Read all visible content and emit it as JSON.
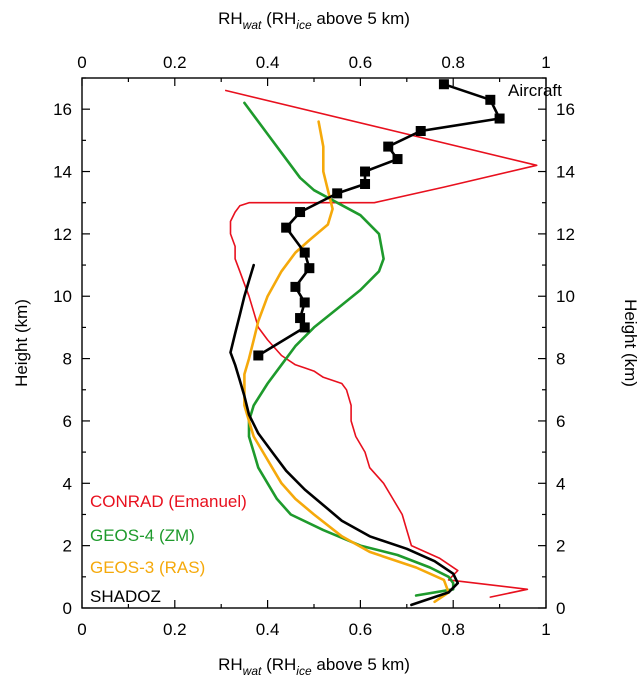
{
  "chart_data": {
    "type": "line",
    "xlim": [
      0,
      1
    ],
    "ylim": [
      0,
      17
    ],
    "x_ticks": [
      "0",
      "0.2",
      "0.4",
      "0.6",
      "0.8",
      "1"
    ],
    "y_ticks": [
      "0",
      "2",
      "4",
      "6",
      "8",
      "10",
      "12",
      "14",
      "16"
    ],
    "xlabel": {
      "main": "RH",
      "sub1": "wat",
      "mid": " (RH",
      "sub2": "ice",
      "end": " above 5 km)"
    },
    "ylabel": "Height (km)",
    "grid": false,
    "legend_position": "bottom-left",
    "annotation": "Aircraft",
    "series": [
      {
        "name": "CONRAD (Emanuel)",
        "color": "#e8101e",
        "x": [
          0.88,
          0.96,
          0.79,
          0.81,
          0.77,
          0.71,
          0.7,
          0.69,
          0.67,
          0.65,
          0.62,
          0.61,
          0.59,
          0.58,
          0.58,
          0.57,
          0.56,
          0.54,
          0.52,
          0.51,
          0.5,
          0.48,
          0.46,
          0.43,
          0.4,
          0.38,
          0.37,
          0.36,
          0.35,
          0.34,
          0.33,
          0.33,
          0.32,
          0.32,
          0.33,
          0.34,
          0.36,
          0.4,
          0.46,
          0.53,
          0.63,
          0.78,
          0.98,
          0.31
        ],
        "y": [
          0.35,
          0.6,
          0.9,
          1.2,
          1.6,
          2.0,
          2.5,
          3.0,
          3.5,
          4.0,
          4.5,
          5.0,
          5.5,
          6.0,
          6.5,
          7.0,
          7.2,
          7.3,
          7.4,
          7.5,
          7.6,
          7.7,
          7.8,
          8.1,
          8.6,
          9.0,
          9.5,
          10.0,
          10.4,
          10.8,
          11.2,
          11.6,
          12.0,
          12.4,
          12.7,
          12.9,
          13.0,
          13.0,
          13.0,
          13.0,
          13.0,
          13.5,
          14.2,
          16.6
        ]
      },
      {
        "name": "GEOS-4 (ZM)",
        "color": "#1e9a2c",
        "x": [
          0.72,
          0.8,
          0.8,
          0.79,
          0.75,
          0.68,
          0.6,
          0.52,
          0.45,
          0.42,
          0.4,
          0.38,
          0.37,
          0.36,
          0.36,
          0.37,
          0.4,
          0.43,
          0.46,
          0.5,
          0.55,
          0.6,
          0.64,
          0.65,
          0.64,
          0.6,
          0.55,
          0.5,
          0.47,
          0.45,
          0.43,
          0.4,
          0.35
        ],
        "y": [
          0.4,
          0.6,
          0.8,
          1.0,
          1.3,
          1.7,
          2.0,
          2.5,
          3.0,
          3.5,
          4.0,
          4.5,
          5.0,
          5.5,
          6.0,
          6.5,
          7.2,
          7.8,
          8.4,
          9.0,
          9.6,
          10.2,
          10.8,
          11.2,
          12.0,
          12.6,
          13.0,
          13.4,
          13.8,
          14.2,
          14.6,
          15.2,
          16.2
        ]
      },
      {
        "name": "GEOS-3 (RAS)",
        "color": "#f5a90b",
        "x": [
          0.76,
          0.79,
          0.78,
          0.72,
          0.62,
          0.56,
          0.5,
          0.46,
          0.43,
          0.41,
          0.39,
          0.37,
          0.36,
          0.35,
          0.35,
          0.35,
          0.36,
          0.37,
          0.38,
          0.4,
          0.43,
          0.46,
          0.49,
          0.53,
          0.54,
          0.53,
          0.52,
          0.52,
          0.51
        ],
        "y": [
          0.2,
          0.5,
          0.9,
          1.3,
          1.8,
          2.3,
          3.0,
          3.5,
          4.0,
          4.5,
          5.0,
          5.5,
          6.0,
          6.5,
          7.0,
          7.5,
          8.0,
          8.6,
          9.2,
          10.0,
          10.8,
          11.4,
          11.8,
          12.3,
          12.8,
          13.4,
          14.0,
          14.8,
          15.6
        ]
      },
      {
        "name": "SHADOZ",
        "color": "#000000",
        "x": [
          0.71,
          0.79,
          0.81,
          0.8,
          0.76,
          0.7,
          0.62,
          0.56,
          0.52,
          0.48,
          0.44,
          0.41,
          0.38,
          0.36,
          0.35,
          0.34,
          0.33,
          0.32,
          0.33,
          0.34,
          0.35,
          0.36,
          0.37
        ],
        "y": [
          0.1,
          0.5,
          0.8,
          1.1,
          1.5,
          1.9,
          2.3,
          2.8,
          3.3,
          3.8,
          4.4,
          5.0,
          5.6,
          6.2,
          6.8,
          7.3,
          7.8,
          8.2,
          8.8,
          9.4,
          10.0,
          10.5,
          11.0
        ]
      },
      {
        "name": "Aircraft",
        "color": "#000000",
        "markers": true,
        "x": [
          0.38,
          0.48,
          0.47,
          0.48,
          0.46,
          0.49,
          0.48,
          0.44,
          0.47,
          0.55,
          0.61,
          0.61,
          0.68,
          0.66,
          0.73,
          0.9,
          0.88,
          0.78
        ],
        "y": [
          8.1,
          9.0,
          9.3,
          9.8,
          10.3,
          10.9,
          11.4,
          12.2,
          12.7,
          13.3,
          13.6,
          14.0,
          14.4,
          14.8,
          15.3,
          15.7,
          16.3,
          16.8
        ]
      }
    ]
  }
}
